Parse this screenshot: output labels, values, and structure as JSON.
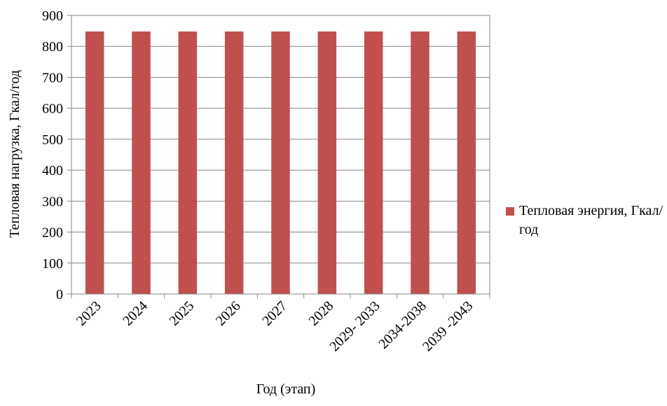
{
  "chart_data": {
    "type": "bar",
    "categories": [
      "2023",
      "2024",
      "2025",
      "2026",
      "2027",
      "2028",
      "2029- 2033",
      "2034-2038",
      "2039 -2043"
    ],
    "series": [
      {
        "name": "Тепловая энергия, Гкал/год",
        "values": [
          848,
          848,
          848,
          848,
          848,
          848,
          848,
          848,
          848
        ],
        "color": "#C0504D"
      }
    ],
    "ylabel": "Тепловая нагрузка, Гкал/год",
    "xlabel": "Год (этап)",
    "ylim": [
      0,
      900
    ],
    "yticks": [
      "0",
      "100",
      "200",
      "300",
      "400",
      "500",
      "600",
      "700",
      "800",
      "900"
    ],
    "grid": true,
    "legend_position": "right",
    "gridline_color": "#868686",
    "axis_color": "#868686"
  }
}
